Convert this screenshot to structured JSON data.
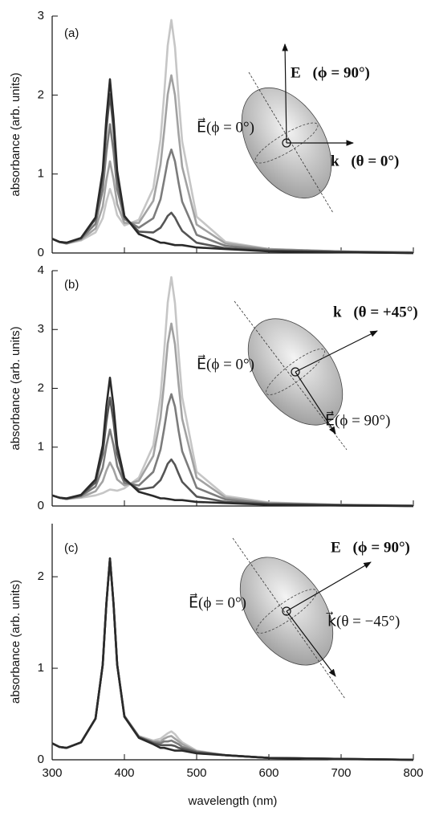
{
  "chart_data": [
    {
      "type": "line",
      "panel_label": "(a)",
      "ylabel": "absorbance (arb. units)",
      "annotations": [
        "E⃗(ϕ = 90°)",
        "E⃗(ϕ = 0°)",
        "k⃗(θ = 0°)"
      ],
      "x": [
        300,
        310,
        320,
        340,
        360,
        370,
        375,
        380,
        385,
        390,
        400,
        420,
        440,
        450,
        455,
        460,
        465,
        470,
        475,
        480,
        500,
        540,
        600,
        700,
        800
      ],
      "xlim": [
        300,
        800
      ],
      "xticks": [
        300,
        400,
        500,
        600,
        700,
        800
      ],
      "xticklabels": false,
      "ylim": [
        0,
        3
      ],
      "yticks": [
        0,
        1,
        2,
        3
      ],
      "series": [
        {
          "color": "#2a2a2a",
          "values": [
            0.18,
            0.14,
            0.13,
            0.19,
            0.45,
            1.04,
            1.7,
            2.2,
            1.7,
            1.04,
            0.47,
            0.24,
            0.17,
            0.13,
            0.13,
            0.12,
            0.11,
            0.1,
            0.1,
            0.1,
            0.07,
            0.05,
            0.02,
            0.01,
            0
          ]
        },
        {
          "color": "#555555",
          "values": [
            0.18,
            0.14,
            0.13,
            0.19,
            0.43,
            0.96,
            1.56,
            2.01,
            1.56,
            0.96,
            0.46,
            0.27,
            0.26,
            0.32,
            0.39,
            0.47,
            0.51,
            0.45,
            0.36,
            0.28,
            0.13,
            0.06,
            0.03,
            0.01,
            0
          ]
        },
        {
          "color": "#7c7c7c",
          "values": [
            0.18,
            0.14,
            0.12,
            0.18,
            0.37,
            0.8,
            1.27,
            1.63,
            1.28,
            0.81,
            0.43,
            0.32,
            0.44,
            0.68,
            0.92,
            1.17,
            1.31,
            1.16,
            0.89,
            0.65,
            0.23,
            0.09,
            0.04,
            0.02,
            0
          ]
        },
        {
          "color": "#a2a2a2",
          "values": [
            0.18,
            0.14,
            0.12,
            0.17,
            0.31,
            0.59,
            0.92,
            1.16,
            0.93,
            0.62,
            0.38,
            0.38,
            0.66,
            1.12,
            1.54,
            2.01,
            2.25,
            2.0,
            1.51,
            1.09,
            0.36,
            0.12,
            0.05,
            0.02,
            0.01
          ]
        },
        {
          "color": "#c6c6c6",
          "values": [
            0.18,
            0.14,
            0.12,
            0.16,
            0.26,
            0.44,
            0.65,
            0.81,
            0.67,
            0.48,
            0.35,
            0.42,
            0.82,
            1.44,
            2.0,
            2.63,
            2.95,
            2.61,
            1.97,
            1.41,
            0.46,
            0.14,
            0.05,
            0.02,
            0
          ]
        }
      ]
    },
    {
      "type": "line",
      "panel_label": "(b)",
      "ylabel": "absorbance (arb. units)",
      "annotations": [
        "k⃗(θ = +45°)",
        "E⃗(ϕ = 0°)",
        "E⃗(ϕ = 90°)"
      ],
      "x": [
        300,
        310,
        320,
        340,
        360,
        370,
        375,
        380,
        385,
        390,
        400,
        420,
        440,
        450,
        455,
        460,
        465,
        470,
        475,
        480,
        500,
        540,
        600,
        700,
        800
      ],
      "xlim": [
        300,
        800
      ],
      "xticks": [
        300,
        400,
        500,
        600,
        700,
        800
      ],
      "xticklabels": false,
      "ylim": [
        0,
        4
      ],
      "yticks": [
        0,
        1,
        2,
        3,
        4
      ],
      "series": [
        {
          "color": "#2a2a2a",
          "values": [
            0.18,
            0.14,
            0.13,
            0.19,
            0.45,
            1.03,
            1.69,
            2.18,
            1.69,
            1.03,
            0.47,
            0.24,
            0.17,
            0.13,
            0.13,
            0.12,
            0.11,
            0.1,
            0.1,
            0.1,
            0.07,
            0.05,
            0.02,
            0.01,
            0
          ]
        },
        {
          "color": "#555555",
          "values": [
            0.18,
            0.14,
            0.12,
            0.18,
            0.4,
            0.89,
            1.43,
            1.84,
            1.43,
            0.89,
            0.44,
            0.28,
            0.32,
            0.44,
            0.57,
            0.72,
            0.79,
            0.7,
            0.55,
            0.41,
            0.16,
            0.07,
            0.03,
            0.01,
            0
          ]
        },
        {
          "color": "#7c7c7c",
          "values": [
            0.18,
            0.14,
            0.12,
            0.17,
            0.33,
            0.65,
            1.02,
            1.3,
            1.03,
            0.68,
            0.39,
            0.35,
            0.58,
            0.96,
            1.31,
            1.7,
            1.9,
            1.69,
            1.28,
            0.93,
            0.31,
            0.11,
            0.04,
            0.02,
            0
          ]
        },
        {
          "color": "#a2a2a2",
          "values": [
            0.18,
            0.14,
            0.12,
            0.15,
            0.25,
            0.42,
            0.6,
            0.74,
            0.62,
            0.45,
            0.35,
            0.43,
            0.85,
            1.5,
            2.09,
            2.76,
            3.1,
            2.75,
            2.07,
            1.48,
            0.48,
            0.14,
            0.05,
            0.02,
            0.01
          ]
        },
        {
          "color": "#c6c6c6",
          "values": [
            0.18,
            0.14,
            0.12,
            0.14,
            0.18,
            0.22,
            0.25,
            0.28,
            0.27,
            0.26,
            0.3,
            0.48,
            1.03,
            1.87,
            2.62,
            3.46,
            3.89,
            3.45,
            2.6,
            1.85,
            0.58,
            0.17,
            0.06,
            0.02,
            0.01
          ]
        }
      ]
    },
    {
      "type": "line",
      "panel_label": "(c)",
      "ylabel": "absorbance (arb. units)",
      "xlabel": "wavelength (nm)",
      "annotations": [
        "E⃗(ϕ = 90°)",
        "E⃗(ϕ = 0°)",
        "k⃗(θ = −45°)"
      ],
      "x": [
        300,
        310,
        320,
        340,
        360,
        370,
        375,
        380,
        385,
        390,
        400,
        420,
        440,
        450,
        455,
        460,
        465,
        470,
        475,
        480,
        500,
        540,
        600,
        700,
        800
      ],
      "xlim": [
        300,
        800
      ],
      "xticks": [
        300,
        400,
        500,
        600,
        700,
        800
      ],
      "xticklabels": true,
      "ylim": [
        0,
        2.58
      ],
      "yticks": [
        0,
        1,
        2
      ],
      "series": [
        {
          "color": "#2a2a2a",
          "values": [
            0.18,
            0.14,
            0.13,
            0.19,
            0.45,
            1.04,
            1.7,
            2.2,
            1.7,
            1.04,
            0.47,
            0.24,
            0.17,
            0.13,
            0.13,
            0.12,
            0.11,
            0.1,
            0.1,
            0.1,
            0.07,
            0.05,
            0.02,
            0.01,
            0
          ]
        },
        {
          "color": "#555555",
          "values": [
            0.18,
            0.14,
            0.13,
            0.19,
            0.45,
            1.04,
            1.7,
            2.2,
            1.7,
            1.04,
            0.47,
            0.25,
            0.18,
            0.16,
            0.16,
            0.16,
            0.16,
            0.15,
            0.13,
            0.12,
            0.08,
            0.05,
            0.02,
            0.01,
            0
          ]
        },
        {
          "color": "#7c7c7c",
          "values": [
            0.18,
            0.14,
            0.13,
            0.19,
            0.45,
            1.04,
            1.7,
            2.2,
            1.7,
            1.04,
            0.48,
            0.25,
            0.19,
            0.18,
            0.2,
            0.2,
            0.21,
            0.19,
            0.17,
            0.14,
            0.09,
            0.05,
            0.02,
            0.01,
            0
          ]
        },
        {
          "color": "#a2a2a2",
          "values": [
            0.18,
            0.14,
            0.13,
            0.19,
            0.45,
            1.04,
            1.7,
            2.2,
            1.7,
            1.04,
            0.48,
            0.25,
            0.2,
            0.2,
            0.23,
            0.25,
            0.26,
            0.23,
            0.2,
            0.17,
            0.09,
            0.05,
            0.02,
            0.01,
            0
          ]
        },
        {
          "color": "#c6c6c6",
          "values": [
            0.18,
            0.14,
            0.13,
            0.19,
            0.45,
            1.04,
            1.7,
            2.2,
            1.7,
            1.04,
            0.48,
            0.26,
            0.21,
            0.23,
            0.26,
            0.29,
            0.31,
            0.28,
            0.23,
            0.19,
            0.1,
            0.05,
            0.02,
            0.01,
            0
          ]
        }
      ]
    }
  ]
}
